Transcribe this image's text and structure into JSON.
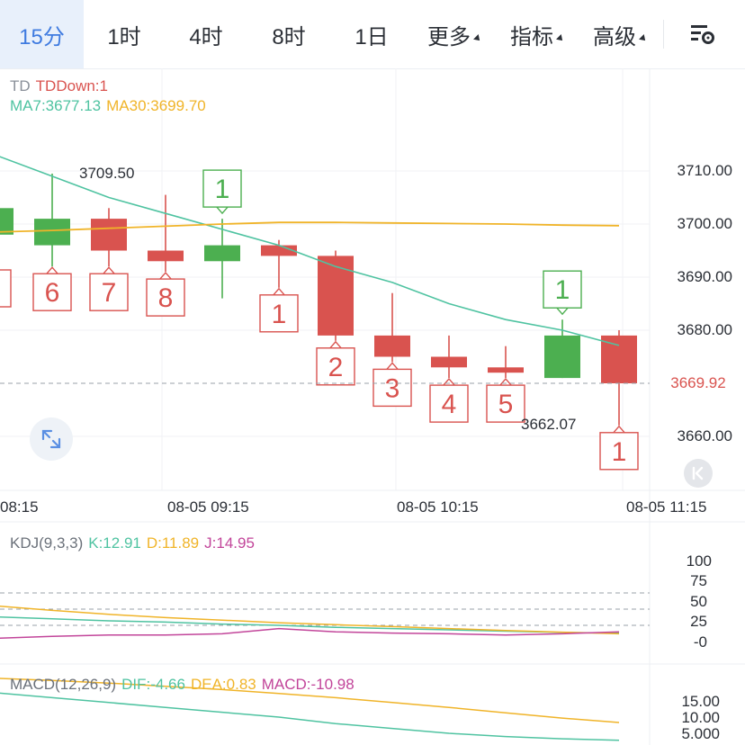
{
  "tabs": [
    {
      "label": "15分",
      "active": true
    },
    {
      "label": "1时"
    },
    {
      "label": "4时"
    },
    {
      "label": "8时"
    },
    {
      "label": "1日"
    },
    {
      "label": "更多",
      "dropdown": true
    },
    {
      "label": "指标",
      "dropdown": true
    },
    {
      "label": "高级",
      "dropdown": true
    }
  ],
  "main_legend": {
    "td_name": "TD",
    "td_value": "TDDown:1",
    "ma7": "MA7:3677.13",
    "ma30": "MA30:3699.70"
  },
  "price_axis": [
    "3710.00",
    "3700.00",
    "3690.00",
    "3680.00",
    "3669.92",
    "3660.00"
  ],
  "current_price": "3669.92",
  "high_label": "3709.50",
  "low_label": "3662.07",
  "time_axis": [
    "08:15",
    "08-05 09:15",
    "08-05 10:15",
    "08-05 11:15"
  ],
  "kdj_legend": {
    "name": "KDJ(9,3,3)",
    "k": "K:12.91",
    "d": "D:11.89",
    "j": "J:14.95"
  },
  "kdj_axis": [
    "100",
    "75",
    "50",
    "25",
    "-0"
  ],
  "macd_legend": {
    "name": "MACD(12,26,9)",
    "dif": "DIF:-4.66",
    "dea": "DEA:0.83",
    "macd": "MACD:-10.98"
  },
  "macd_axis": [
    "15.00",
    "10.00",
    "5.000"
  ],
  "colors": {
    "up": "#4caf50",
    "down": "#d9534f",
    "ma7": "#4fc3a1",
    "ma30": "#f0b429",
    "accent": "#3f7be0",
    "kdj_k": "#4fc3a1",
    "kdj_d": "#f0b429",
    "kdj_j": "#c2459a"
  },
  "chart_data": {
    "type": "candlestick",
    "interval": "15分",
    "candles": [
      {
        "open": 3698,
        "close": 3703,
        "high": 3705,
        "low": 3695,
        "td": null
      },
      {
        "open": 3696,
        "close": 3701,
        "high": 3709.5,
        "low": 3692,
        "td": "6"
      },
      {
        "open": 3701,
        "close": 3695,
        "high": 3703,
        "low": 3692,
        "td": "7"
      },
      {
        "open": 3695,
        "close": 3693,
        "high": 3705.5,
        "low": 3691,
        "td": "8"
      },
      {
        "open": 3693,
        "close": 3696,
        "high": 3701,
        "low": 3686,
        "td": "1",
        "td_up": true
      },
      {
        "open": 3696,
        "close": 3694,
        "high": 3697,
        "low": 3688,
        "td": "1"
      },
      {
        "open": 3694,
        "close": 3679,
        "high": 3695,
        "low": 3678,
        "td": "2"
      },
      {
        "open": 3679,
        "close": 3675,
        "high": 3687,
        "low": 3674,
        "td": "3"
      },
      {
        "open": 3675,
        "close": 3673,
        "high": 3679,
        "low": 3671,
        "td": "4"
      },
      {
        "open": 3673,
        "close": 3672,
        "high": 3677,
        "low": 3671,
        "td": "5"
      },
      {
        "open": 3671,
        "close": 3679,
        "high": 3682,
        "low": 3671,
        "td": "1",
        "td_up": true
      },
      {
        "open": 3679,
        "close": 3670,
        "high": 3680,
        "low": 3662.07,
        "td": "1"
      }
    ],
    "ma7": [
      3713,
      3709,
      3705,
      3702,
      3699,
      3696,
      3692,
      3689,
      3685,
      3682,
      3680,
      3677.13
    ],
    "ma30": [
      3698.5,
      3698.8,
      3699.2,
      3699.6,
      3700,
      3700.3,
      3700.3,
      3700.2,
      3700.1,
      3700,
      3699.8,
      3699.7
    ],
    "kdj": {
      "k": [
        38,
        35,
        32,
        30,
        27,
        25,
        22,
        20,
        18,
        16,
        14,
        12.91
      ],
      "d": [
        55,
        48,
        42,
        37,
        33,
        29,
        26,
        23,
        20,
        17,
        14.5,
        11.89
      ],
      "j": [
        5,
        8,
        10,
        10,
        12,
        20,
        15,
        13,
        12,
        10,
        12,
        14.95
      ]
    },
    "macd": {
      "dif": [
        10,
        8.5,
        7,
        5.5,
        4,
        2.5,
        0.5,
        -1,
        -2.5,
        -3.5,
        -4.2,
        -4.66
      ],
      "dea": [
        14.5,
        13.8,
        13,
        12,
        11,
        9.8,
        8.5,
        7,
        5.5,
        3.8,
        2.2,
        0.83
      ]
    },
    "ylim": [
      3655,
      3716
    ]
  }
}
